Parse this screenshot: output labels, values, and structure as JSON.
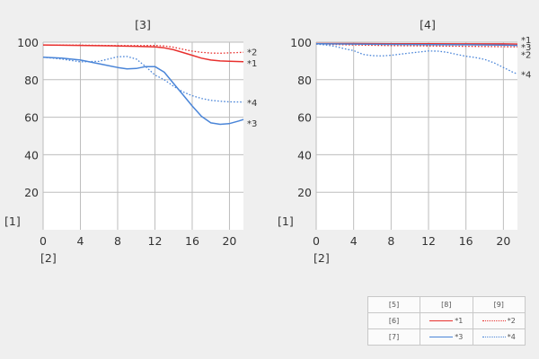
{
  "legend": {
    "col_header_1": "[5]",
    "col_header_2": "[8]",
    "col_header_3": "[9]",
    "row_1_label": "[6]",
    "row_2_label": "[7]",
    "s1": "*1",
    "s2": "*2",
    "s3": "*3",
    "s4": "*4"
  },
  "colors": {
    "red": "#e8302e",
    "blue": "#4a85d8",
    "grid": "#bdbdbd"
  },
  "chart_data": [
    {
      "type": "line",
      "title": "[3]",
      "ylabel": "[1]",
      "xlabel": "[2]",
      "xlim": [
        0,
        21.5
      ],
      "ylim": [
        0,
        100
      ],
      "xticks": [
        "0",
        "4",
        "8",
        "12",
        "16",
        "20"
      ],
      "yticks": [
        "20",
        "40",
        "60",
        "80",
        "100"
      ],
      "grid": true,
      "series": [
        {
          "name": "*1",
          "color": "red",
          "style": "solid",
          "x": [
            0,
            4,
            8,
            10,
            12,
            13,
            14,
            15,
            16,
            17,
            18,
            19,
            20,
            21.5
          ],
          "y": [
            98.5,
            98.3,
            98,
            97.8,
            97.5,
            97,
            96,
            94.5,
            93,
            91.5,
            90.5,
            90,
            89.8,
            89.6
          ]
        },
        {
          "name": "*2",
          "color": "red",
          "style": "dotted",
          "x": [
            0,
            4,
            8,
            10,
            12,
            13,
            14,
            15,
            16,
            17,
            18,
            19,
            20,
            21.5
          ],
          "y": [
            98.5,
            98.4,
            98.2,
            98.2,
            98.3,
            98,
            97.3,
            96.2,
            95.2,
            94.6,
            94.2,
            94.1,
            94.3,
            94.6
          ]
        },
        {
          "name": "*3",
          "color": "blue",
          "style": "solid",
          "x": [
            0,
            2,
            4,
            6,
            8,
            9,
            10,
            11,
            12,
            13,
            14,
            15,
            16,
            17,
            18,
            19,
            20,
            21,
            21.5
          ],
          "y": [
            92,
            91.5,
            90.5,
            88.5,
            86.5,
            85.8,
            86,
            87,
            87,
            84,
            78,
            72,
            66,
            60.5,
            57,
            56.2,
            56.6,
            58,
            58.8
          ]
        },
        {
          "name": "*4",
          "color": "blue",
          "style": "dotted",
          "x": [
            0,
            2,
            4,
            6,
            7,
            8,
            9,
            10,
            11,
            12,
            13,
            14,
            15,
            16,
            17,
            18,
            19,
            20,
            21.5
          ],
          "y": [
            92,
            91,
            89.5,
            89.8,
            91,
            92.2,
            92.4,
            91,
            87,
            82.5,
            80,
            76.5,
            73.5,
            71.5,
            70,
            69,
            68.5,
            68.2,
            68.1
          ]
        }
      ],
      "series_labels": [
        {
          "text": "*2",
          "y": 95
        },
        {
          "text": "*1",
          "y": 89
        },
        {
          "text": "*4",
          "y": 68
        },
        {
          "text": "*3",
          "y": 57
        }
      ]
    },
    {
      "type": "line",
      "title": "[4]",
      "ylabel": "[1]",
      "xlabel": "[2]",
      "xlim": [
        0,
        21.5
      ],
      "ylim": [
        0,
        100
      ],
      "xticks": [
        "0",
        "4",
        "8",
        "12",
        "16",
        "20"
      ],
      "yticks": [
        "20",
        "40",
        "60",
        "80",
        "100"
      ],
      "grid": true,
      "series": [
        {
          "name": "*1",
          "color": "red",
          "style": "solid",
          "x": [
            0,
            4,
            8,
            12,
            16,
            20,
            21.5
          ],
          "y": [
            99.3,
            99.3,
            99.2,
            99.2,
            99.1,
            99.1,
            99
          ]
        },
        {
          "name": "*2",
          "color": "red",
          "style": "dotted",
          "x": [
            0,
            4,
            8,
            12,
            16,
            20,
            21.5
          ],
          "y": [
            99,
            98.5,
            98.2,
            98,
            97.8,
            97.6,
            97.5
          ]
        },
        {
          "name": "*3",
          "color": "blue",
          "style": "solid",
          "x": [
            0,
            4,
            8,
            12,
            16,
            20,
            21.5
          ],
          "y": [
            99.2,
            99,
            98.8,
            98.7,
            98.6,
            98.4,
            98.3
          ]
        },
        {
          "name": "*4",
          "color": "blue",
          "style": "dotted",
          "x": [
            0,
            1,
            2,
            3,
            4,
            5,
            6,
            7,
            8,
            10,
            12,
            13,
            14,
            15,
            16,
            17,
            18,
            19,
            20,
            21,
            21.5
          ],
          "y": [
            99,
            98.5,
            97.8,
            96.5,
            95.5,
            93.5,
            92.8,
            92.7,
            93,
            94.2,
            95.3,
            95.2,
            94.6,
            93.5,
            92.5,
            91.8,
            90.8,
            89,
            86.5,
            84,
            83
          ]
        }
      ],
      "series_labels": [
        {
          "text": "*1",
          "y": 101.5
        },
        {
          "text": "*3",
          "y": 97.5
        },
        {
          "text": "*2",
          "y": 93.5
        },
        {
          "text": "*4",
          "y": 83
        }
      ]
    }
  ]
}
